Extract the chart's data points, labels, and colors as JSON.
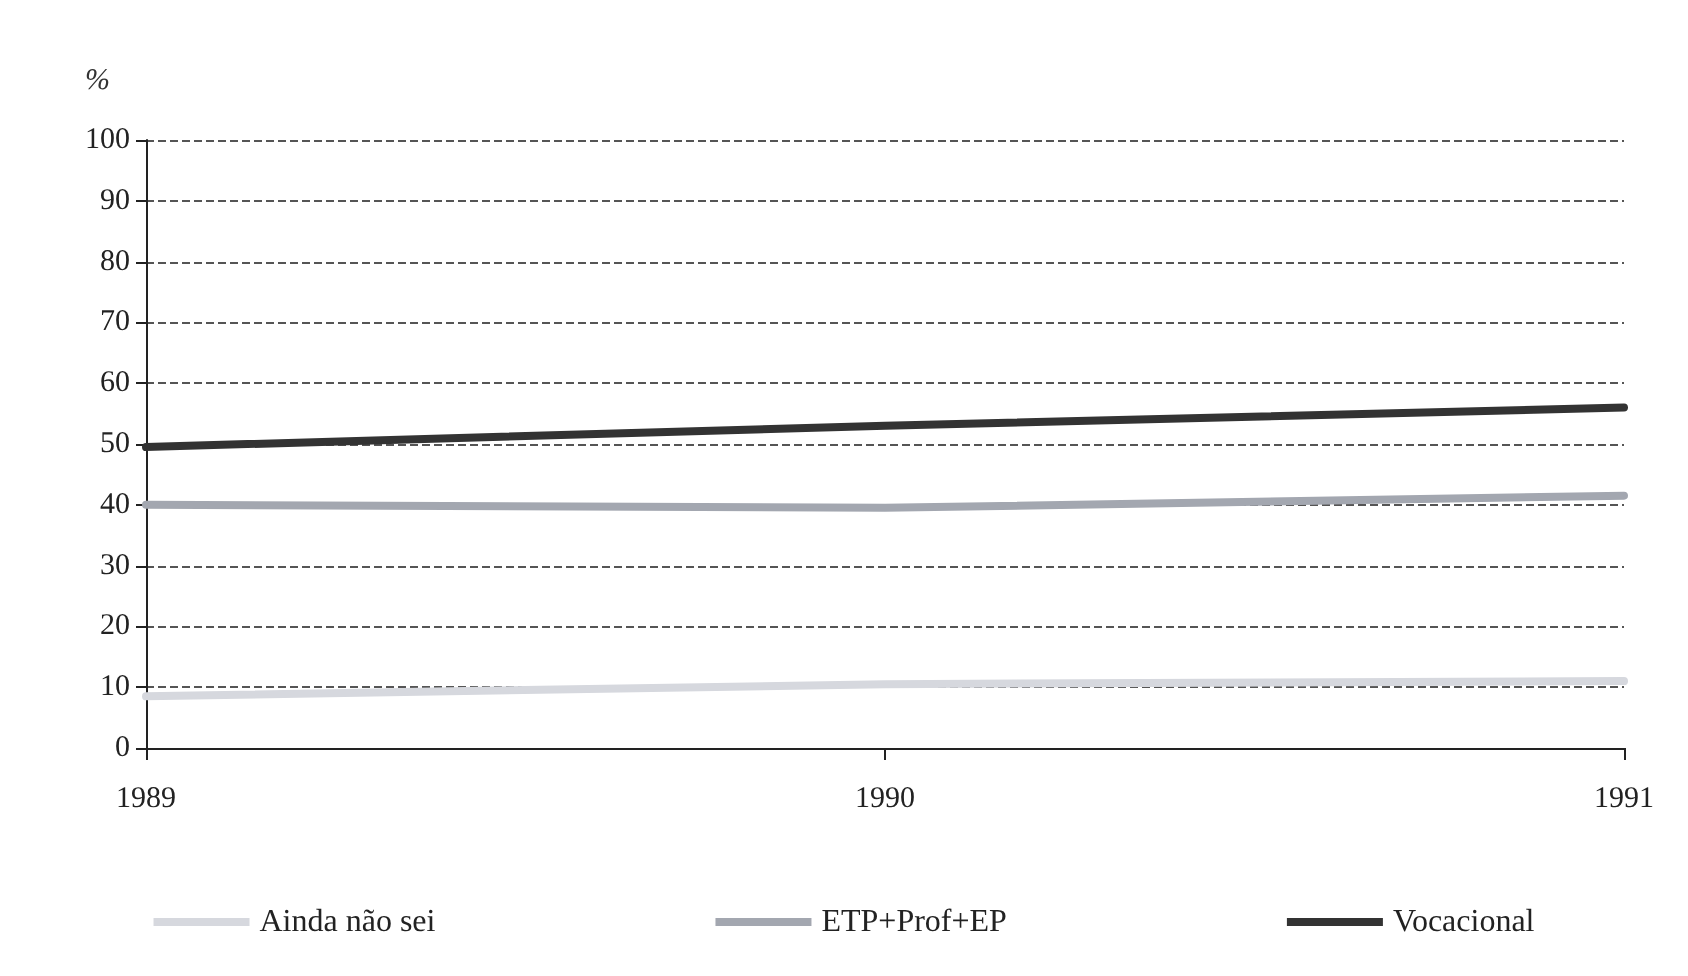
{
  "chart_data": {
    "type": "line",
    "ylabel": "%",
    "categories": [
      "1989",
      "1990",
      "1991"
    ],
    "series": [
      {
        "name": "Ainda não sei",
        "color": "#d6d8de",
        "values": [
          8.5,
          10.5,
          11
        ]
      },
      {
        "name": "ETP+Prof+EP",
        "color": "#a3a7b0",
        "values": [
          40,
          39.5,
          41.5
        ]
      },
      {
        "name": "Vocacional",
        "color": "#333333",
        "values": [
          49.5,
          53,
          56
        ]
      }
    ],
    "ylim": [
      0,
      100
    ],
    "yticks": [
      0,
      10,
      20,
      30,
      40,
      50,
      60,
      70,
      80,
      90,
      100
    ],
    "grid": "y",
    "legend": "bottom",
    "marker": "none",
    "line_style": "solid"
  }
}
